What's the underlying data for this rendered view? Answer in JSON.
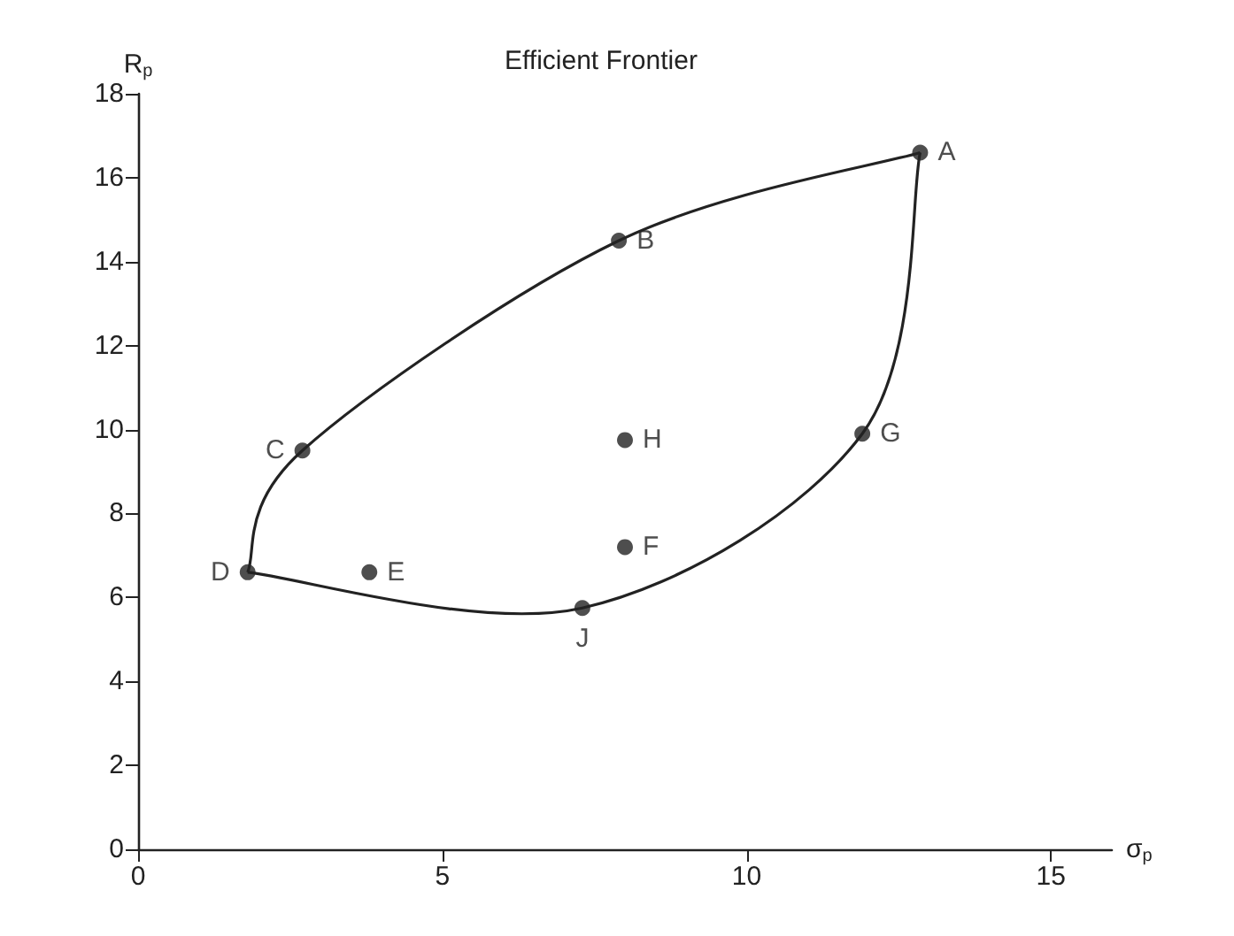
{
  "chart_data": {
    "type": "scatter",
    "title": "Efficient Frontier",
    "xlabel": "σ$_{p}$",
    "ylabel": "R$_{p}$",
    "xlim": [
      0,
      16
    ],
    "xticks": [
      0,
      5,
      10,
      15
    ],
    "ylim": [
      0,
      18
    ],
    "yticks": [
      0,
      2,
      4,
      6,
      8,
      10,
      12,
      14,
      16,
      18
    ],
    "grid": false,
    "marker": "circle",
    "series": [
      {
        "color": "#222222",
        "x": [
          12.85,
          7.9,
          2.7,
          1.8,
          3.8,
          8.0,
          8.0,
          7.3,
          11.9
        ],
        "values": [
          16.6,
          14.5,
          9.5,
          6.6,
          6.6,
          9.75,
          7.2,
          5.75,
          9.9
        ]
      }
    ],
    "annotations": [
      {
        "text": "A",
        "x": 12.85,
        "y": 16.6
      },
      {
        "text": "B",
        "x": 7.9,
        "y": 14.5
      },
      {
        "text": "C",
        "x": 2.7,
        "y": 9.5
      },
      {
        "text": "D",
        "x": 1.8,
        "y": 6.6
      },
      {
        "text": "E",
        "x": 3.8,
        "y": 6.6
      },
      {
        "text": "H",
        "x": 8.0,
        "y": 9.75
      },
      {
        "text": "F",
        "x": 8.0,
        "y": 7.2
      },
      {
        "text": "J",
        "x": 7.3,
        "y": 5.75
      },
      {
        "text": "G",
        "x": 11.9,
        "y": 9.9
      }
    ]
  }
}
